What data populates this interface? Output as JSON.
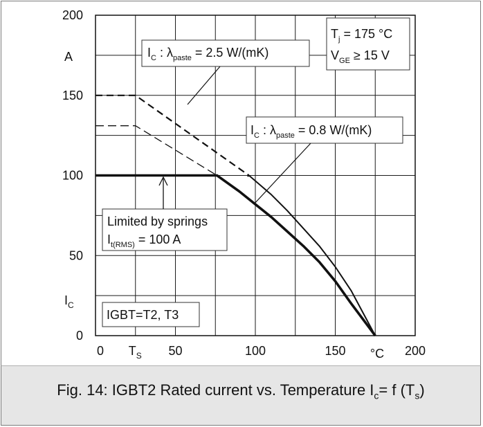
{
  "chart_data": {
    "type": "line",
    "xlim": [
      0,
      200
    ],
    "ylim": [
      0,
      200
    ],
    "x_ticks": [
      "0",
      "50",
      "100",
      "150",
      "200"
    ],
    "y_ticks": [
      "0",
      "50",
      "100",
      "150",
      "200"
    ],
    "x_special_ticks": [
      {
        "x": 25,
        "main": "T",
        "sub": "S"
      }
    ],
    "x_unit": "°C",
    "y_unit": "A",
    "y_symbol": {
      "main": "I",
      "sub": "C"
    },
    "grid": true,
    "series": [
      {
        "style": "dashed-thick",
        "points": [
          [
            0,
            150
          ],
          [
            25,
            150
          ],
          [
            96,
            100
          ]
        ]
      },
      {
        "style": "dashed-thin",
        "points": [
          [
            0,
            131
          ],
          [
            25,
            131
          ],
          [
            76,
            100
          ]
        ]
      },
      {
        "style": "solid-thick",
        "points": [
          [
            0,
            100
          ],
          [
            76,
            100
          ],
          [
            90,
            90
          ],
          [
            100,
            82
          ],
          [
            110,
            74
          ],
          [
            120,
            65
          ],
          [
            130,
            56
          ],
          [
            140,
            46
          ],
          [
            150,
            34
          ],
          [
            160,
            20
          ],
          [
            175,
            0
          ]
        ]
      },
      {
        "style": "solid-thin",
        "points": [
          [
            96,
            100
          ],
          [
            110,
            88
          ],
          [
            120,
            78
          ],
          [
            130,
            67
          ],
          [
            140,
            56
          ],
          [
            150,
            43
          ],
          [
            160,
            28
          ],
          [
            175,
            0
          ]
        ]
      },
      {
        "style": "solid-thick",
        "points": [
          [
            95,
            100
          ],
          [
            96,
            100
          ]
        ]
      }
    ],
    "annotations": {
      "label_25": {
        "main": "I",
        "sub1": "C",
        "mid": " : λ",
        "sub2": "paste",
        "tail": " = 2.5 W/(mK)"
      },
      "label_08": {
        "main": "I",
        "sub1": "C",
        "mid": " : λ",
        "sub2": "paste",
        "tail": " = 0.8 W/(mK)"
      },
      "conditions": {
        "line1_main": "T",
        "line1_sub": "j",
        "line1_tail": " = 175 °C",
        "line2_main": "V",
        "line2_sub": "GE",
        "line2_tail": " ≥ 15 V"
      },
      "springs": {
        "line1": "Limited by springs",
        "line2_main": "I",
        "line2_sub": "t(RMS)",
        "line2_tail": " = 100 A"
      },
      "device": "IGBT=T2, T3"
    }
  },
  "caption": {
    "prefix": "Fig. 14: IGBT2 Rated current vs. Temperature I",
    "sub1": "c",
    "mid": "= f (T",
    "sub2": "s",
    "suffix": ")"
  }
}
